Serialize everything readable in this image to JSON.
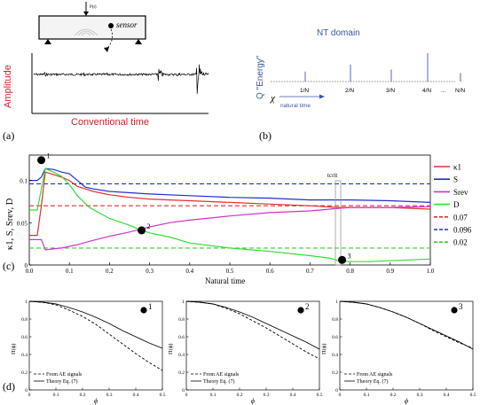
{
  "panel_a": {
    "panel_label": "(a)",
    "ylabel": "Amplitude",
    "xlabel": "Conventional time",
    "sensor_label": "sensor",
    "force_label": "P(t)",
    "colors": {
      "ylabel": "#d0202a",
      "xlabel": "#d0202a",
      "signal": "#000000"
    }
  },
  "panel_b": {
    "panel_label": "(b)",
    "title": "NT domain",
    "ylabel": "Q \"Energy\"",
    "chi_label": "χ",
    "arrow_label": "natural time",
    "tick_labels": [
      "1/N",
      "2/N",
      "3/N",
      "4/N",
      "...",
      "N/N"
    ],
    "spike_heights": [
      0.35,
      0.6,
      0.42,
      1.0,
      0.3
    ],
    "colors": {
      "title": "#3a55a8",
      "ylabel": "#3a55a8",
      "spikes": "#4a68c0"
    }
  },
  "panel_c": {
    "panel_label": "(c)",
    "ylabel": "κ1, S, Srev, D",
    "xlabel": "Natural time",
    "tcrit_label": "tcrit",
    "tcrit_x": 0.77,
    "markers": [
      {
        "label": "1",
        "x": 0.03,
        "y": 0.124
      },
      {
        "label": "2",
        "x": 0.28,
        "y": 0.041
      },
      {
        "label": "3",
        "x": 0.78,
        "y": 0.006
      }
    ],
    "legend": [
      {
        "label": "κ1",
        "color": "#e03030",
        "dash": false
      },
      {
        "label": "S",
        "color": "#2030d0",
        "dash": false
      },
      {
        "label": "Srev",
        "color": "#d030d0",
        "dash": false
      },
      {
        "label": "D",
        "color": "#30e030",
        "dash": false
      },
      {
        "label": "0.07",
        "color": "#e03030",
        "dash": true
      },
      {
        "label": "0.096",
        "color": "#2030d0",
        "dash": true
      },
      {
        "label": "0.02",
        "color": "#30d030",
        "dash": true
      }
    ]
  },
  "panel_d": {
    "panel_label": "(d)",
    "xlabel": "ϕ",
    "ylabel": "Π(ϕ)",
    "legend": [
      "From AE signals",
      "Theory Eq. (7)"
    ]
  },
  "chart_data": [
    {
      "type": "line",
      "xlabel": "Natural time",
      "ylabel": "κ1, S, Srev, D",
      "xlim": [
        0,
        1
      ],
      "ylim": [
        0,
        0.13
      ],
      "xticks": [
        0,
        0.1,
        0.2,
        0.3,
        0.4,
        0.5,
        0.6,
        0.7,
        0.8,
        0.9,
        1.0
      ],
      "yticks": [
        0,
        0.05,
        0.1
      ],
      "grid": false,
      "legend_position": "right",
      "hlines": [
        {
          "name": "0.07",
          "y": 0.07,
          "color": "#e03030"
        },
        {
          "name": "0.096",
          "y": 0.096,
          "color": "#2030d0"
        },
        {
          "name": "0.02",
          "y": 0.02,
          "color": "#30d030"
        }
      ],
      "series": [
        {
          "name": "κ1",
          "color": "#e03030",
          "x": [
            0,
            0.02,
            0.03,
            0.04,
            0.06,
            0.08,
            0.1,
            0.12,
            0.14,
            0.16,
            0.2,
            0.25,
            0.3,
            0.35,
            0.4,
            0.5,
            0.6,
            0.7,
            0.77,
            0.8,
            0.9,
            1.0
          ],
          "y": [
            0.035,
            0.035,
            0.07,
            0.11,
            0.107,
            0.104,
            0.1,
            0.093,
            0.09,
            0.087,
            0.083,
            0.08,
            0.078,
            0.077,
            0.076,
            0.074,
            0.072,
            0.07,
            0.068,
            0.068,
            0.068,
            0.066
          ]
        },
        {
          "name": "S",
          "color": "#2030d0",
          "x": [
            0,
            0.02,
            0.03,
            0.04,
            0.06,
            0.08,
            0.1,
            0.12,
            0.14,
            0.16,
            0.2,
            0.3,
            0.4,
            0.5,
            0.6,
            0.7,
            0.77,
            0.8,
            0.9,
            1.0
          ],
          "y": [
            0.1,
            0.1,
            0.104,
            0.114,
            0.113,
            0.11,
            0.108,
            0.1,
            0.092,
            0.09,
            0.087,
            0.084,
            0.082,
            0.08,
            0.079,
            0.077,
            0.077,
            0.077,
            0.076,
            0.074
          ]
        },
        {
          "name": "Srev",
          "color": "#d030d0",
          "x": [
            0,
            0.03,
            0.04,
            0.06,
            0.08,
            0.1,
            0.12,
            0.15,
            0.2,
            0.25,
            0.3,
            0.35,
            0.4,
            0.5,
            0.6,
            0.7,
            0.77,
            0.8,
            0.9,
            1.0
          ],
          "y": [
            0.03,
            0.03,
            0.018,
            0.019,
            0.02,
            0.022,
            0.024,
            0.028,
            0.034,
            0.039,
            0.045,
            0.05,
            0.053,
            0.058,
            0.062,
            0.064,
            0.067,
            0.068,
            0.068,
            0.069
          ]
        },
        {
          "name": "D",
          "color": "#30e030",
          "x": [
            0,
            0.02,
            0.03,
            0.04,
            0.06,
            0.08,
            0.1,
            0.12,
            0.15,
            0.2,
            0.25,
            0.28,
            0.3,
            0.35,
            0.4,
            0.5,
            0.6,
            0.7,
            0.75,
            0.77,
            0.8,
            0.85,
            0.9,
            1.0
          ],
          "y": [
            0.065,
            0.065,
            0.09,
            0.114,
            0.11,
            0.105,
            0.095,
            0.082,
            0.068,
            0.055,
            0.047,
            0.041,
            0.038,
            0.033,
            0.026,
            0.02,
            0.016,
            0.011,
            0.008,
            0.005,
            0.004,
            0.004,
            0.005,
            0.007
          ]
        }
      ]
    },
    {
      "type": "line",
      "marker_label": "1",
      "xlabel": "ϕ",
      "ylabel": "Π(ϕ)",
      "xlim": [
        0,
        0.5
      ],
      "ylim": [
        0,
        1
      ],
      "xticks": [
        0,
        0.1,
        0.2,
        0.3,
        0.4,
        0.5
      ],
      "yticks": [
        0,
        0.2,
        0.4,
        0.6,
        0.8,
        1
      ],
      "series": [
        {
          "name": "From AE signals",
          "x": [
            0,
            0.05,
            0.1,
            0.15,
            0.2,
            0.25,
            0.3,
            0.35,
            0.4,
            0.45,
            0.5
          ],
          "y": [
            1,
            0.99,
            0.96,
            0.9,
            0.83,
            0.74,
            0.63,
            0.52,
            0.41,
            0.31,
            0.22
          ]
        },
        {
          "name": "Theory Eq. (7)",
          "x": [
            0,
            0.05,
            0.1,
            0.15,
            0.2,
            0.25,
            0.3,
            0.35,
            0.4,
            0.45,
            0.5
          ],
          "y": [
            1,
            0.99,
            0.97,
            0.93,
            0.88,
            0.82,
            0.75,
            0.67,
            0.6,
            0.53,
            0.47
          ]
        }
      ]
    },
    {
      "type": "line",
      "marker_label": "2",
      "xlabel": "ϕ",
      "ylabel": "Π(ϕ)",
      "xlim": [
        0,
        0.5
      ],
      "ylim": [
        0,
        1
      ],
      "xticks": [
        0,
        0.1,
        0.2,
        0.3,
        0.4,
        0.5
      ],
      "yticks": [
        0,
        0.2,
        0.4,
        0.6,
        0.8,
        1
      ],
      "series": [
        {
          "name": "From AE signals",
          "x": [
            0,
            0.05,
            0.1,
            0.15,
            0.2,
            0.25,
            0.3,
            0.35,
            0.4,
            0.45,
            0.5
          ],
          "y": [
            1,
            0.99,
            0.97,
            0.92,
            0.86,
            0.78,
            0.7,
            0.61,
            0.52,
            0.43,
            0.35
          ]
        },
        {
          "name": "Theory Eq. (7)",
          "x": [
            0,
            0.05,
            0.1,
            0.15,
            0.2,
            0.25,
            0.3,
            0.35,
            0.4,
            0.45,
            0.5
          ],
          "y": [
            1,
            0.99,
            0.97,
            0.93,
            0.88,
            0.82,
            0.75,
            0.68,
            0.61,
            0.54,
            0.46
          ]
        }
      ]
    },
    {
      "type": "line",
      "marker_label": "3",
      "xlabel": "ϕ",
      "ylabel": "Π(ϕ)",
      "xlim": [
        0,
        0.5
      ],
      "ylim": [
        0,
        1
      ],
      "xticks": [
        0,
        0.1,
        0.2,
        0.3,
        0.4,
        0.5
      ],
      "yticks": [
        0,
        0.2,
        0.4,
        0.6,
        0.8,
        1
      ],
      "series": [
        {
          "name": "From AE signals",
          "x": [
            0,
            0.05,
            0.1,
            0.15,
            0.2,
            0.25,
            0.3,
            0.35,
            0.4,
            0.45,
            0.5
          ],
          "y": [
            1,
            0.99,
            0.97,
            0.93,
            0.88,
            0.82,
            0.75,
            0.67,
            0.6,
            0.53,
            0.47
          ]
        },
        {
          "name": "Theory Eq. (7)",
          "x": [
            0,
            0.05,
            0.1,
            0.15,
            0.2,
            0.25,
            0.3,
            0.35,
            0.4,
            0.45,
            0.5
          ],
          "y": [
            1,
            0.99,
            0.97,
            0.93,
            0.88,
            0.82,
            0.75,
            0.68,
            0.61,
            0.54,
            0.46
          ]
        }
      ]
    }
  ]
}
